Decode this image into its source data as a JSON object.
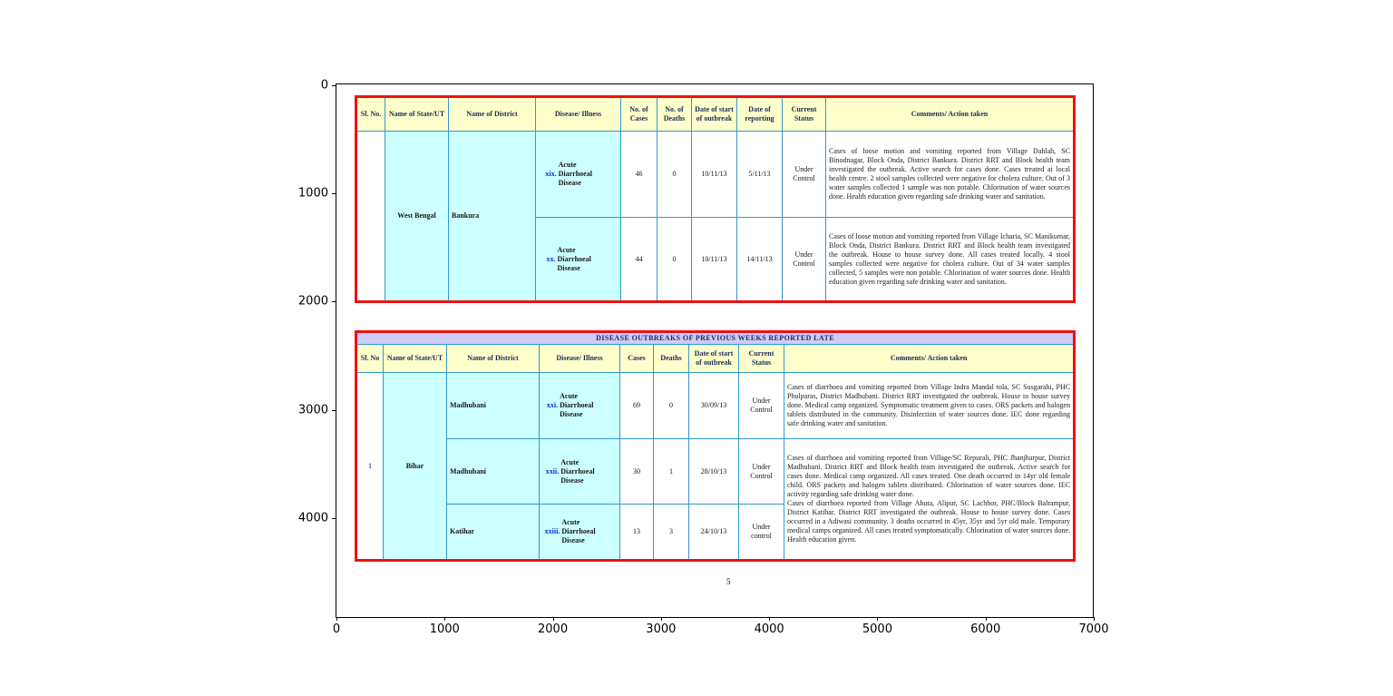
{
  "figure": {
    "x_ticks": [
      "0",
      "1000",
      "2000",
      "3000",
      "4000",
      "5000",
      "6000",
      "7000"
    ],
    "y_ticks": [
      "0",
      "1000",
      "2000",
      "3000",
      "4000"
    ],
    "page_number": "5"
  },
  "colors": {
    "outer_border": "#ee1111",
    "grid_line": "#3399cc",
    "header_bg": "#ffffcc",
    "highlight_bg": "#ccffff",
    "title_bg": "#ccccff",
    "numeral_blue": "#0033cc"
  },
  "table1": {
    "headers": [
      "Sl. No.",
      "Name of State/UT",
      "Name of District",
      "Disease/ Illness",
      "No. of Cases",
      "No. of Deaths",
      "Date of start of outbreak",
      "Date of reporting",
      "Current Status",
      "Comments/ Action taken"
    ],
    "sl_no": "",
    "state": "West Bengal",
    "district": "Bankura",
    "rows": [
      {
        "num": "xix.",
        "disease": "Acute Diarrhoeal Disease",
        "cases": "46",
        "deaths": "0",
        "date_start": "10/11/13",
        "date_report": "5/11/13",
        "status": "Under Control",
        "comments": "Cases of loose motion and vomiting reported from Village Dahlah, SC Binodnagar, Block Onda, District Bankura. District RRT and Block health team investigated the outbreak. Active search for cases done. Cases treated at local health centre. 2 stool samples collected were negative for cholera culture. Out of 3 water samples collected 1 sample was non potable. Chlorination of water sources done. Health education given regarding safe drinking water and sanitation."
      },
      {
        "num": "xx.",
        "disease": "Acute Diarrhoeal Disease",
        "cases": "44",
        "deaths": "0",
        "date_start": "10/11/13",
        "date_report": "14/11/13",
        "status": "Under Control",
        "comments": "Cases of loose motion and vomiting reported from Village Icharia, SC Manikumar, Block Onda, District Bankura. District RRT and Block health team investigated the outbreak. House to house survey done. All cases treated locally. 4 stool samples collected were negative for cholera culture. Out of 34 water samples collected, 5 samples were non potable. Chlorination of water sources done. Health education given regarding safe drinking water and sanitation."
      }
    ]
  },
  "table2": {
    "title": "DISEASE OUTBREAKS OF PREVIOUS WEEKS REPORTED LATE",
    "headers": [
      "Sl. No",
      "Name of State/UT",
      "Name of District",
      "Disease/ Illness",
      "Cases",
      "Deaths",
      "Date of start of outbreak",
      "Current Status",
      "Comments/ Action taken"
    ],
    "sl_no": "1",
    "state": "Bihar",
    "rows": [
      {
        "num": "xxi.",
        "district": "Madhubani",
        "disease": "Acute Diarrhoeal Disease",
        "cases": "69",
        "deaths": "0",
        "date_start": "30/09/13",
        "status": "Under Control",
        "comments": "Cases of diarrhoea and vomiting reported from Village Indra Mandal tola, SC Susgarahi, PHC Phulparas, District Madhubani. District RRT investigated the outbreak. House to house survey done. Medical camp organized. Symptomatic treatment given to cases. ORS packets and halogen tablets distributed in the community. Disinfection of water sources done. IEC done regarding safe drinking water and sanitation."
      },
      {
        "num": "xxii.",
        "district": "Madhubani",
        "disease": "Acute Diarrhoeal Disease",
        "cases": "30",
        "deaths": "1",
        "date_start": "28/10/13",
        "status": "Under Control",
        "comments": "Cases of diarrhoea and vomiting reported from Village/SC Repurali, PHC Jhanjharpur, District Madhubani. District RRT and Block health team investigated the outbreak. Active search for cases done. Medical camp organized. All cases treated. One death occurred in 14yr old female child. ORS packets and halogen tablets distributed. Chlorination of water sources done. IEC activity regarding safe drinking water done."
      },
      {
        "num": "xxiii.",
        "district": "Katihar",
        "disease": "Acute Diarrhoeal Disease",
        "cases": "13",
        "deaths": "3",
        "date_start": "24/10/13",
        "status": "Under control",
        "comments": "Cases of diarrhoea reported from Village Ahuta, Alipur, SC Lachhor, PHC/Block Balrampur, District Katihar. District RRT investigated the outbreak. House to house survey done. Cases occurred in a Adiwasi community. 3 deaths occurred in 45yr, 35yr and 5yr old male. Temporary medical camps organized. All cases treated symptomatically. Chlorination of water sources done. Health education given."
      }
    ]
  }
}
